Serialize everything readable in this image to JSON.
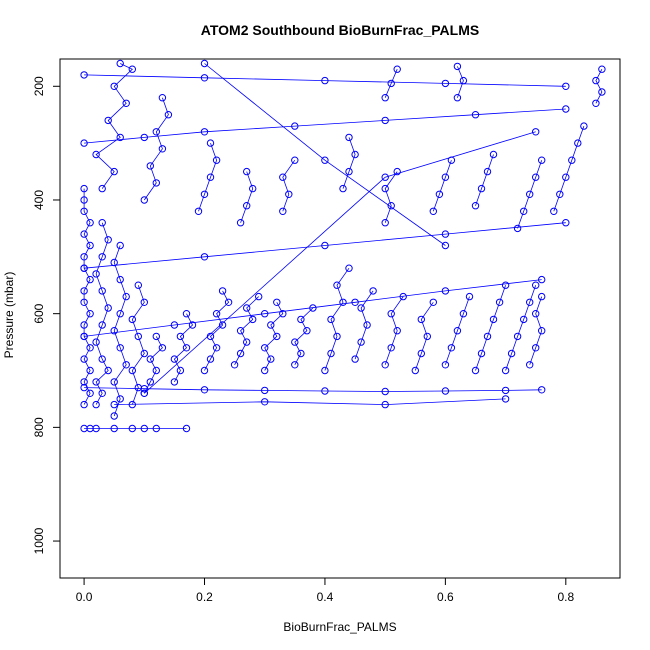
{
  "chart_data": {
    "type": "scatter",
    "title": "ATOM2 Southbound BioBurnFrac_PALMS",
    "xlabel": "BioBurnFrac_PALMS",
    "ylabel": "Pressure (mbar)",
    "xlim": [
      -0.04,
      0.89
    ],
    "ylim": [
      1065,
      152
    ],
    "y_reversed": true,
    "x_ticks": [
      "0.0",
      "0.2",
      "0.4",
      "0.6",
      "0.8"
    ],
    "x_tick_values": [
      0.0,
      0.2,
      0.4,
      0.6,
      0.8
    ],
    "y_ticks": [
      "200",
      "400",
      "600",
      "800",
      "1000"
    ],
    "y_tick_values": [
      200,
      400,
      600,
      800,
      1000
    ],
    "grid": false,
    "legend": "none",
    "colors": {
      "series": "#0000ff",
      "axis": "#000000",
      "background": "#ffffff"
    },
    "series": [
      {
        "marker": "open-circle",
        "connected": true,
        "profiles": [
          {
            "x": [
              0.0,
              0.01,
              0.0,
              0.01,
              0.0,
              0.01,
              0.0,
              0.0,
              0.01,
              0.0,
              0.0,
              0.01,
              0.0,
              0.0,
              0.01,
              0.0,
              0.01,
              0.0,
              0.0,
              0.0
            ],
            "y": [
              760,
              740,
              720,
              700,
              680,
              660,
              640,
              620,
              600,
              580,
              560,
              540,
              520,
              500,
              480,
              460,
              440,
              420,
              400,
              380
            ]
          },
          {
            "x": [
              0.0,
              0.01,
              0.02,
              0.05,
              0.08,
              0.1,
              0.12,
              0.17
            ],
            "y": [
              802,
              802,
              802,
              802,
              802,
              802,
              802,
              802
            ]
          },
          {
            "x": [
              0.02,
              0.03,
              0.02,
              0.04,
              0.03,
              0.02,
              0.03,
              0.04,
              0.03,
              0.02,
              0.03,
              0.04,
              0.03
            ],
            "y": [
              760,
              740,
              720,
              700,
              680,
              650,
              620,
              590,
              560,
              530,
              500,
              470,
              440
            ]
          },
          {
            "x": [
              0.05,
              0.06,
              0.05,
              0.07,
              0.06,
              0.05,
              0.06,
              0.07,
              0.06,
              0.05,
              0.06
            ],
            "y": [
              780,
              750,
              720,
              690,
              660,
              630,
              600,
              570,
              540,
              510,
              480
            ]
          },
          {
            "x": [
              0.08,
              0.09,
              0.08,
              0.1,
              0.09,
              0.08,
              0.1,
              0.09
            ],
            "y": [
              760,
              730,
              700,
              670,
              640,
              610,
              580,
              550
            ]
          },
          {
            "x": [
              0.1,
              0.11,
              0.12,
              0.11,
              0.13,
              0.12
            ],
            "y": [
              740,
              720,
              700,
              680,
              660,
              640
            ]
          },
          {
            "x": [
              0.15,
              0.16,
              0.15,
              0.17,
              0.16,
              0.18,
              0.17
            ],
            "y": [
              720,
              700,
              680,
              660,
              640,
              620,
              600
            ]
          },
          {
            "x": [
              0.2,
              0.21,
              0.22,
              0.21,
              0.23,
              0.22,
              0.24,
              0.23
            ],
            "y": [
              700,
              680,
              660,
              640,
              620,
              600,
              580,
              560
            ]
          },
          {
            "x": [
              0.25,
              0.26,
              0.27,
              0.26,
              0.28,
              0.27,
              0.29
            ],
            "y": [
              690,
              670,
              650,
              630,
              610,
              590,
              570
            ]
          },
          {
            "x": [
              0.3,
              0.31,
              0.3,
              0.32,
              0.31,
              0.33,
              0.32
            ],
            "y": [
              700,
              680,
              660,
              640,
              620,
              600,
              580
            ]
          },
          {
            "x": [
              0.35,
              0.36,
              0.35,
              0.37,
              0.36,
              0.38
            ],
            "y": [
              690,
              670,
              650,
              630,
              610,
              590
            ]
          },
          {
            "x": [
              0.4,
              0.41,
              0.42,
              0.41,
              0.43,
              0.42,
              0.44
            ],
            "y": [
              700,
              670,
              640,
              610,
              580,
              550,
              520
            ]
          },
          {
            "x": [
              0.45,
              0.46,
              0.47,
              0.46,
              0.48
            ],
            "y": [
              680,
              650,
              620,
              590,
              560
            ]
          },
          {
            "x": [
              0.5,
              0.51,
              0.52,
              0.51,
              0.53
            ],
            "y": [
              690,
              660,
              630,
              600,
              570
            ]
          },
          {
            "x": [
              0.55,
              0.56,
              0.57,
              0.56,
              0.58
            ],
            "y": [
              700,
              670,
              640,
              610,
              580
            ]
          },
          {
            "x": [
              0.6,
              0.61,
              0.62,
              0.63,
              0.64
            ],
            "y": [
              690,
              660,
              630,
              600,
              570
            ]
          },
          {
            "x": [
              0.65,
              0.66,
              0.67,
              0.68,
              0.69,
              0.7
            ],
            "y": [
              700,
              670,
              640,
              610,
              580,
              550
            ]
          },
          {
            "x": [
              0.7,
              0.71,
              0.72,
              0.73,
              0.74,
              0.75
            ],
            "y": [
              700,
              670,
              640,
              610,
              580,
              550
            ]
          },
          {
            "x": [
              0.74,
              0.75,
              0.76,
              0.75,
              0.76
            ],
            "y": [
              690,
              660,
              630,
              600,
              570
            ]
          },
          {
            "x": [
              0.03,
              0.05,
              0.02,
              0.06,
              0.04,
              0.07,
              0.05,
              0.08,
              0.06
            ],
            "y": [
              380,
              350,
              320,
              290,
              260,
              230,
              200,
              170,
              160
            ]
          },
          {
            "x": [
              0.1,
              0.12,
              0.11,
              0.13,
              0.12,
              0.14,
              0.13
            ],
            "y": [
              400,
              370,
              340,
              310,
              280,
              250,
              220
            ]
          },
          {
            "x": [
              0.19,
              0.2,
              0.21,
              0.22,
              0.21
            ],
            "y": [
              420,
              390,
              360,
              330,
              300
            ]
          },
          {
            "x": [
              0.26,
              0.27,
              0.28,
              0.27
            ],
            "y": [
              440,
              410,
              380,
              350
            ]
          },
          {
            "x": [
              0.33,
              0.34,
              0.33,
              0.35
            ],
            "y": [
              420,
              390,
              360,
              330
            ]
          },
          {
            "x": [
              0.43,
              0.44,
              0.45,
              0.44
            ],
            "y": [
              380,
              350,
              320,
              290
            ]
          },
          {
            "x": [
              0.5,
              0.51,
              0.5,
              0.52
            ],
            "y": [
              440,
              410,
              380,
              350
            ]
          },
          {
            "x": [
              0.58,
              0.59,
              0.6,
              0.61
            ],
            "y": [
              420,
              390,
              360,
              330
            ]
          },
          {
            "x": [
              0.65,
              0.66,
              0.67,
              0.68
            ],
            "y": [
              410,
              380,
              350,
              320
            ]
          },
          {
            "x": [
              0.72,
              0.73,
              0.74,
              0.75,
              0.76
            ],
            "y": [
              450,
              420,
              390,
              360,
              330
            ]
          },
          {
            "x": [
              0.78,
              0.79,
              0.8,
              0.81,
              0.82,
              0.83
            ],
            "y": [
              420,
              390,
              360,
              330,
              300,
              270
            ]
          },
          {
            "x": [
              0.85,
              0.86,
              0.85,
              0.86
            ],
            "y": [
              230,
              210,
              190,
              170
            ]
          },
          {
            "x": [
              0.62,
              0.63,
              0.62
            ],
            "y": [
              220,
              190,
              165
            ]
          },
          {
            "x": [
              0.5,
              0.51,
              0.52
            ],
            "y": [
              220,
              195,
              170
            ]
          },
          {
            "x": [
              0.0,
              0.1,
              0.2,
              0.3,
              0.4,
              0.5,
              0.6,
              0.7,
              0.76
            ],
            "y": [
              730,
              732,
              734,
              735,
              736,
              737,
              736,
              735,
              734
            ]
          },
          {
            "x": [
              0.0,
              0.15,
              0.3,
              0.45,
              0.6,
              0.76
            ],
            "y": [
              640,
              620,
              600,
              580,
              560,
              540
            ]
          },
          {
            "x": [
              0.0,
              0.2,
              0.4,
              0.6,
              0.8
            ],
            "y": [
              520,
              500,
              480,
              460,
              440
            ]
          },
          {
            "x": [
              0.0,
              0.1,
              0.2,
              0.35,
              0.5,
              0.65,
              0.8
            ],
            "y": [
              300,
              290,
              280,
              270,
              260,
              250,
              240
            ]
          },
          {
            "x": [
              0.0,
              0.2,
              0.4,
              0.6,
              0.8
            ],
            "y": [
              180,
              185,
              190,
              195,
              200
            ]
          },
          {
            "x": [
              0.05,
              0.3,
              0.5,
              0.7
            ],
            "y": [
              760,
              755,
              760,
              750
            ]
          },
          {
            "x": [
              0.1,
              0.5,
              0.75
            ],
            "y": [
              740,
              360,
              280
            ]
          },
          {
            "x": [
              0.2,
              0.4,
              0.6
            ],
            "y": [
              160,
              330,
              480
            ]
          }
        ]
      }
    ]
  }
}
